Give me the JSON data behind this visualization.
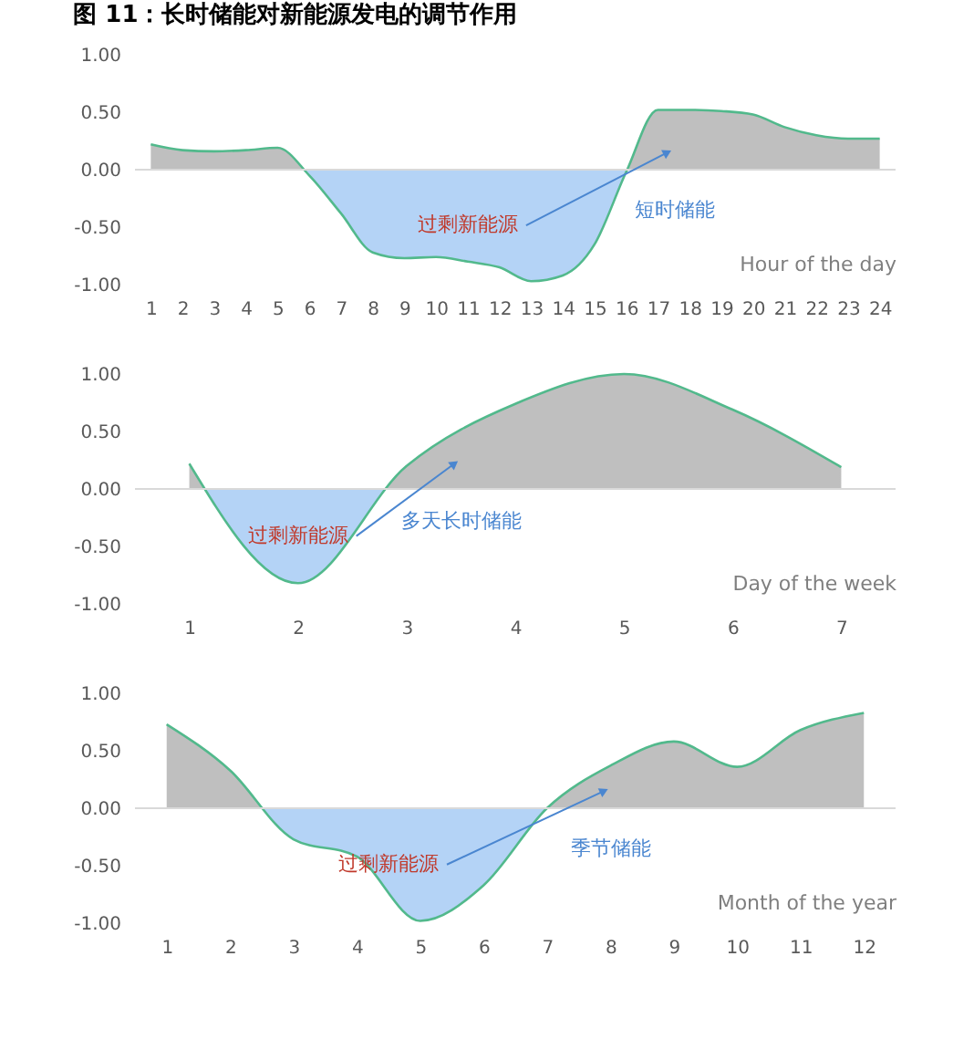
{
  "chart_data": [
    {
      "type": "area",
      "title": "图 11：长时储能对新能源发电的调节作用",
      "xlabel": "Hour of the day",
      "xlim": [
        0.5,
        24.5
      ],
      "xticks": [
        1,
        2,
        3,
        4,
        5,
        6,
        7,
        8,
        9,
        10,
        11,
        12,
        13,
        14,
        15,
        16,
        17,
        18,
        19,
        20,
        21,
        22,
        23,
        24
      ],
      "ylim": [
        -1,
        1
      ],
      "yticks": [
        {
          "value": -1,
          "label": "-1.00"
        },
        {
          "value": -0.5,
          "label": "-0.50"
        },
        {
          "value": 0,
          "label": "0.00"
        },
        {
          "value": 0.5,
          "label": "0.50"
        },
        {
          "value": 1,
          "label": "1.00"
        }
      ],
      "series": [
        {
          "color": "#52b98c",
          "x": [
            1,
            2,
            3,
            4,
            5,
            6,
            7,
            8,
            9,
            10,
            11,
            12,
            13,
            14,
            15,
            16,
            17,
            18,
            19,
            20,
            21,
            22,
            23,
            24
          ],
          "values": [
            0.22,
            0.17,
            0.16,
            0.17,
            0.19,
            -0.05,
            -0.38,
            -0.72,
            -0.77,
            -0.76,
            -0.8,
            -0.85,
            -0.97,
            -0.92,
            -0.65,
            -0.02,
            0.52,
            0.52,
            0.51,
            0.48,
            0.37,
            0.3,
            0.27,
            0.27
          ]
        }
      ],
      "ref_lines": [
        {
          "axis": "y",
          "value": 0,
          "color": "#d9d9d9"
        }
      ],
      "annotations": [
        {
          "text": "过剩新能源",
          "x": 17.3,
          "y": 0.15
        },
        "短时储能"
      ]
    },
    {
      "type": "area",
      "xlabel": "Day of the week",
      "xlim": [
        0.5,
        7.5
      ],
      "xticks": [
        1,
        2,
        3,
        4,
        5,
        6,
        7
      ],
      "ylim": [
        -1,
        1
      ],
      "yticks": [
        {
          "value": -1,
          "label": "-1.00"
        },
        {
          "value": -0.5,
          "label": "-0.50"
        },
        {
          "value": 0,
          "label": "0.00"
        },
        {
          "value": 0.5,
          "label": "0.50"
        },
        {
          "value": 1,
          "label": "1.00"
        }
      ],
      "series": [
        {
          "color": "#52b98c",
          "x": [
            1,
            2,
            3,
            4,
            5,
            6,
            7
          ],
          "values": [
            0.22,
            -0.82,
            0.2,
            0.74,
            1.0,
            0.69,
            0.19
          ]
        }
      ],
      "ref_lines": [
        {
          "axis": "y",
          "value": 0,
          "color": "#d9d9d9"
        }
      ],
      "annotations": [
        {
          "text": "过剩新能源",
          "x": 3.44,
          "y": 0.22
        },
        "多天长时储能"
      ]
    },
    {
      "type": "area",
      "xlabel": "Month of the year",
      "xlim": [
        0.5,
        12.5
      ],
      "xticks": [
        1,
        2,
        3,
        4,
        5,
        6,
        7,
        8,
        9,
        10,
        11,
        12
      ],
      "ylim": [
        -1,
        1
      ],
      "yticks": [
        {
          "value": -1,
          "label": "-1.00"
        },
        {
          "value": -0.5,
          "label": "-0.50"
        },
        {
          "value": 0,
          "label": "0.00"
        },
        {
          "value": 0.5,
          "label": "0.50"
        },
        {
          "value": 1,
          "label": "1.00"
        }
      ],
      "series": [
        {
          "color": "#52b98c",
          "x": [
            1,
            2,
            3,
            4,
            5,
            6,
            7,
            8,
            9,
            10,
            11,
            12
          ],
          "values": [
            0.73,
            0.33,
            -0.27,
            -0.42,
            -0.98,
            -0.67,
            0.0,
            0.37,
            0.58,
            0.36,
            0.68,
            0.83
          ]
        }
      ],
      "ref_lines": [
        {
          "axis": "y",
          "value": 0,
          "color": "#d9d9d9"
        }
      ],
      "annotations": [
        {
          "text": "过剩新能源",
          "x": 7.9,
          "y": 0.15
        },
        "季节储能"
      ]
    }
  ]
}
